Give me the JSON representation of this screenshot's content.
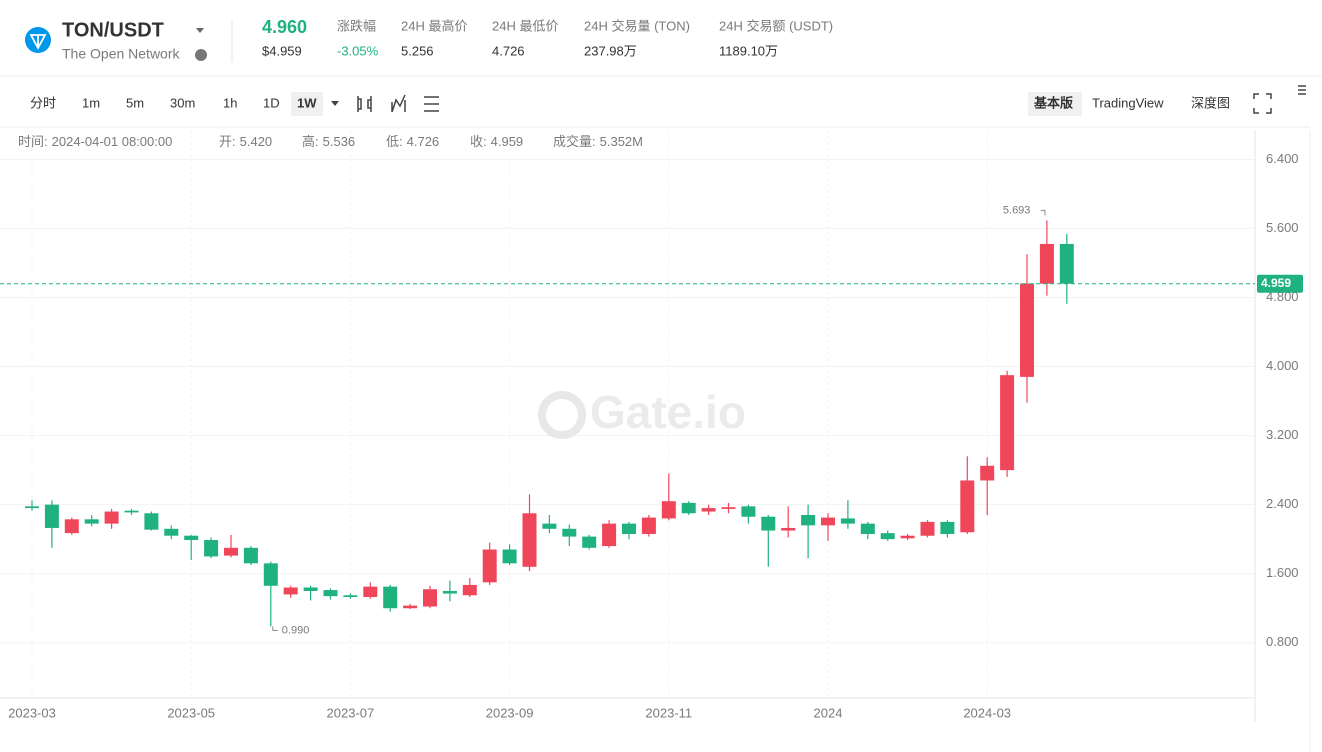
{
  "header": {
    "pair": "TON/USDT",
    "network": "The Open Network",
    "price": "4.960",
    "price_usd": "$4.959",
    "stats": [
      {
        "label": "涨跌幅",
        "value": "-3.05%"
      },
      {
        "label": "24H 最高价",
        "value": "5.256"
      },
      {
        "label": "24H 最低价",
        "value": "4.726"
      },
      {
        "label": "24H 交易量 (TON)",
        "value": "237.98万"
      },
      {
        "label": "24H 交易额 (USDT)",
        "value": "1189.10万"
      }
    ]
  },
  "toolbar": {
    "intervals": [
      "分时",
      "1m",
      "5m",
      "30m",
      "1h",
      "1D",
      "1W"
    ],
    "views": [
      "基本版",
      "TradingView",
      "深度图"
    ]
  },
  "chart_data": {
    "type": "candlestick",
    "watermark": "Gate.io",
    "info": [
      {
        "label": "时间:",
        "value": "2024-04-01 08:00:00"
      },
      {
        "label": "开:",
        "value": "5.420"
      },
      {
        "label": "高:",
        "value": "5.536"
      },
      {
        "label": "低:",
        "value": "4.726"
      },
      {
        "label": "收:",
        "value": "4.959"
      },
      {
        "label": "成交量:",
        "value": "5.352M"
      }
    ],
    "categories": [
      "2023-03",
      null,
      null,
      null,
      null,
      null,
      null,
      null,
      "2023-05",
      null,
      null,
      null,
      null,
      null,
      null,
      null,
      "2023-07",
      null,
      null,
      null,
      null,
      null,
      null,
      null,
      "2023-09",
      null,
      null,
      null,
      null,
      null,
      null,
      null,
      "2023-11",
      null,
      null,
      null,
      null,
      null,
      null,
      null,
      "2024",
      null,
      null,
      null,
      null,
      null,
      null,
      null,
      "2024-03",
      null,
      null,
      null,
      null
    ],
    "open": [
      2.38,
      2.4,
      2.07,
      2.23,
      2.18,
      2.33,
      2.3,
      2.12,
      2.04,
      1.99,
      1.81,
      1.9,
      1.72,
      1.36,
      1.44,
      1.41,
      1.35,
      1.33,
      1.45,
      1.2,
      1.22,
      1.4,
      1.35,
      1.5,
      1.88,
      1.68,
      2.18,
      2.12,
      2.03,
      1.92,
      2.18,
      2.06,
      2.24,
      2.42,
      2.32,
      2.35,
      2.38,
      2.26,
      2.1,
      2.28,
      2.16,
      2.24,
      2.18,
      2.07,
      2.01,
      2.04,
      2.2,
      2.08,
      2.68,
      2.8,
      3.88,
      4.96,
      5.42
    ],
    "high": [
      2.45,
      2.45,
      2.25,
      2.28,
      2.35,
      2.35,
      2.32,
      2.16,
      2.05,
      2.02,
      2.05,
      1.92,
      1.74,
      1.46,
      1.46,
      1.43,
      1.37,
      1.5,
      1.47,
      1.25,
      1.46,
      1.52,
      1.55,
      1.96,
      1.94,
      2.52,
      2.28,
      2.17,
      2.05,
      2.22,
      2.2,
      2.28,
      2.76,
      2.44,
      2.4,
      2.42,
      2.4,
      2.28,
      2.38,
      2.4,
      2.3,
      2.45,
      2.2,
      2.1,
      2.06,
      2.22,
      2.22,
      2.96,
      2.95,
      3.95,
      5.3,
      5.693,
      5.536
    ],
    "low": [
      2.33,
      1.9,
      2.05,
      2.15,
      2.12,
      2.28,
      2.1,
      2.0,
      1.76,
      1.78,
      1.79,
      1.7,
      0.99,
      1.32,
      1.29,
      1.3,
      1.31,
      1.31,
      1.16,
      1.19,
      1.2,
      1.28,
      1.33,
      1.47,
      1.7,
      1.63,
      2.07,
      1.92,
      1.88,
      1.9,
      2.0,
      2.03,
      2.22,
      2.28,
      2.28,
      2.3,
      2.18,
      1.68,
      2.02,
      1.78,
      1.98,
      2.12,
      2.0,
      1.98,
      1.99,
      2.02,
      2.02,
      2.06,
      2.28,
      2.72,
      3.58,
      4.82,
      4.726
    ],
    "close": [
      2.36,
      2.13,
      2.23,
      2.18,
      2.32,
      2.31,
      2.11,
      2.04,
      1.99,
      1.8,
      1.9,
      1.72,
      1.46,
      1.44,
      1.4,
      1.34,
      1.33,
      1.45,
      1.2,
      1.23,
      1.42,
      1.37,
      1.47,
      1.88,
      1.72,
      2.3,
      2.12,
      2.03,
      1.9,
      2.18,
      2.06,
      2.25,
      2.44,
      2.3,
      2.36,
      2.37,
      2.26,
      2.1,
      2.13,
      2.16,
      2.25,
      2.18,
      2.06,
      2.0,
      2.04,
      2.2,
      2.06,
      2.68,
      2.85,
      3.9,
      4.96,
      5.42,
      4.959
    ],
    "up_color": "#f0465a",
    "down_color": "#1fb27f",
    "max_label": "5.693",
    "min_label": {
      "value": 0.99,
      "label": "0.990"
    },
    "last_price_label": "4.959",
    "ylim": [
      0.16,
      6.74
    ],
    "yticks": [
      {
        "value": 0.8,
        "label": "0.800"
      },
      {
        "value": 1.6,
        "label": "1.600"
      },
      {
        "value": 2.4,
        "label": "2.400"
      },
      {
        "value": 3.2,
        "label": "3.200"
      },
      {
        "value": 4,
        "label": "4.000"
      },
      {
        "value": 4.8,
        "label": "4.800"
      },
      {
        "value": 5.6,
        "label": "5.600"
      },
      {
        "value": 6.4,
        "label": "6.400"
      }
    ],
    "grid": true
  }
}
